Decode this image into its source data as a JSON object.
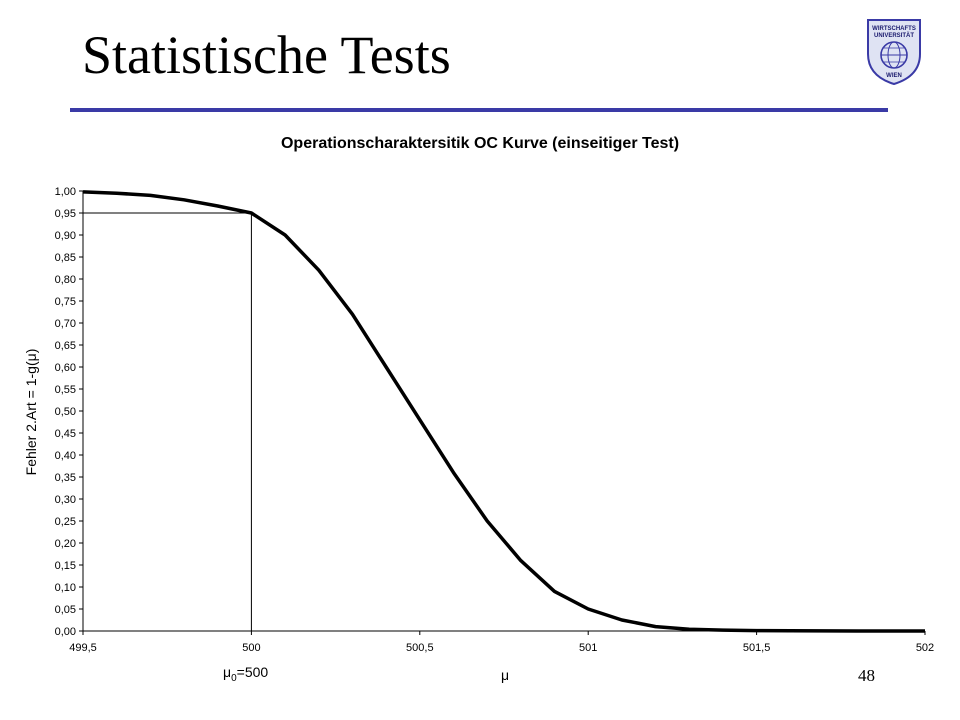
{
  "slide": {
    "title": "Statistische Tests",
    "page_number": "48",
    "logo_text": [
      "WIRTSCHAFTS",
      "UNIVERSITÄT",
      "WIEN"
    ],
    "colors": {
      "title_rule": "#3a3aa6",
      "curve": "#000000"
    }
  },
  "chart_data": {
    "type": "line",
    "title": "Operationscharaktersitik OC Kurve (einseitiger Test)",
    "xlabel": "μ",
    "ylabel": "Fehler 2.Art = 1-g(μ)",
    "xlim": [
      499.5,
      502
    ],
    "ylim": [
      0,
      1
    ],
    "x_ticks": [
      "499,5",
      "500",
      "500,5",
      "501",
      "501,5",
      "502"
    ],
    "y_ticks": [
      "0,00",
      "0,05",
      "0,10",
      "0,15",
      "0,20",
      "0,25",
      "0,30",
      "0,35",
      "0,40",
      "0,45",
      "0,50",
      "0,55",
      "0,60",
      "0,65",
      "0,70",
      "0,75",
      "0,80",
      "0,85",
      "0,90",
      "0,95",
      "1,00"
    ],
    "grid": false,
    "series": [
      {
        "x": [
          499.5,
          499.6,
          499.7,
          499.8,
          499.9,
          500.0,
          500.1,
          500.2,
          500.3,
          500.4,
          500.5,
          500.6,
          500.7,
          500.8,
          500.9,
          501.0,
          501.1,
          501.2,
          501.3,
          501.4,
          501.5,
          501.6,
          501.7,
          501.8,
          501.9,
          502.0
        ],
        "y": [
          0.998,
          0.995,
          0.99,
          0.98,
          0.966,
          0.95,
          0.9,
          0.82,
          0.72,
          0.6,
          0.48,
          0.36,
          0.25,
          0.16,
          0.09,
          0.05,
          0.025,
          0.01,
          0.004,
          0.002,
          0.001,
          0.0005,
          0.0002,
          0.0001,
          0.0,
          0.0
        ]
      }
    ],
    "annotation": {
      "mu0": 500,
      "level": 0.95,
      "label_main": "μ",
      "label_sub": "0",
      "label_rest": "=500"
    }
  }
}
